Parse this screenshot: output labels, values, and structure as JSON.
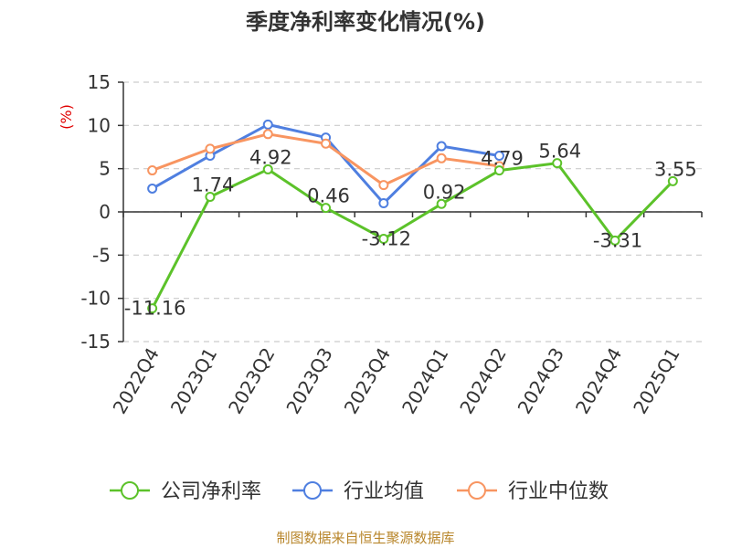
{
  "chart_data": {
    "type": "line",
    "title": "季度净利率变化情况(%)",
    "ylabel": "(%)",
    "xlabel": "",
    "categories": [
      "2022Q4",
      "2023Q1",
      "2023Q2",
      "2023Q3",
      "2023Q4",
      "2024Q1",
      "2024Q2",
      "2024Q3",
      "2024Q4",
      "2025Q1"
    ],
    "ylim": [
      -15,
      15
    ],
    "yticks": [
      "15",
      "10",
      "5",
      "0",
      "-5",
      "-10",
      "-15"
    ],
    "grid": true,
    "legend_position": "bottom",
    "series": [
      {
        "name": "公司净利率",
        "color": "#5cc22a",
        "values": [
          -11.16,
          1.74,
          4.92,
          0.46,
          -3.12,
          0.92,
          4.79,
          5.64,
          -3.31,
          3.55
        ],
        "data_labels": [
          "-11.16",
          "1.74",
          "4.92",
          "0.46",
          "-3.12",
          "0.92",
          "4.79",
          "5.64",
          "-3.31",
          "3.55"
        ]
      },
      {
        "name": "行业均值",
        "color": "#4f7fe0",
        "values": [
          2.7,
          6.5,
          10.1,
          8.6,
          1.0,
          7.6,
          6.5,
          null,
          null,
          null
        ]
      },
      {
        "name": "行业中位数",
        "color": "#f89561",
        "values": [
          4.8,
          7.3,
          9.0,
          7.9,
          3.1,
          6.2,
          5.3,
          null,
          null,
          null
        ]
      }
    ],
    "source": "制图数据来自恒生聚源数据库"
  }
}
